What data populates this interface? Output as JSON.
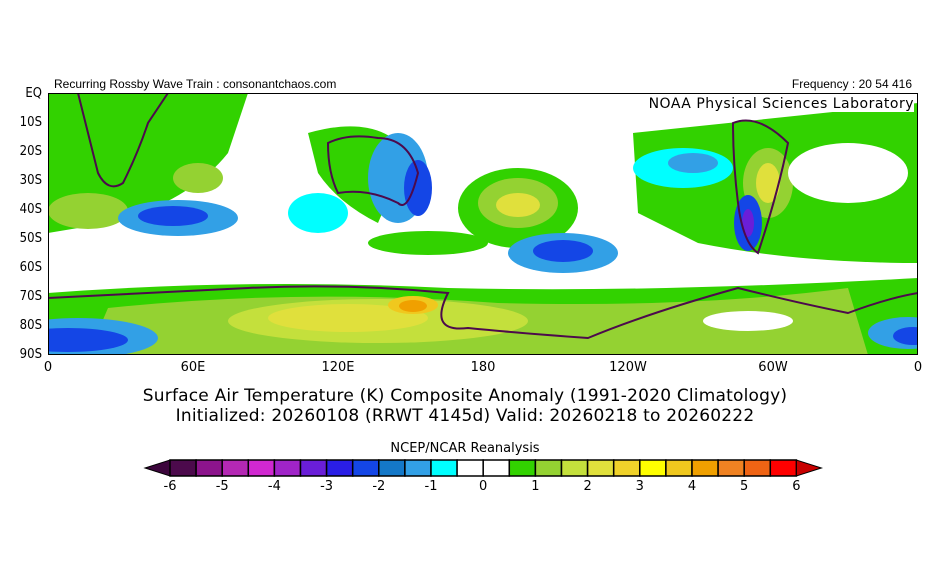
{
  "header": {
    "left": "Recurring Rossby Wave Train : consonantchaos.com",
    "right": "Frequency : 20 54 416",
    "lab": "NOAA Physical Sciences Laboratory"
  },
  "axes": {
    "lat_labels": [
      "EQ",
      "10S",
      "20S",
      "30S",
      "40S",
      "50S",
      "60S",
      "70S",
      "80S",
      "90S"
    ],
    "lon_labels": [
      "0",
      "60E",
      "120E",
      "180",
      "120W",
      "60W",
      "0"
    ]
  },
  "title": {
    "line1": "Surface Air Temperature (K) Composite Anomaly (1991-2020 Climatology)",
    "line2": "Initialized: 20260108 (RRWT 4145d) Valid: 20260218 to 20260222"
  },
  "colorbar": {
    "source": "NCEP/NCAR Reanalysis",
    "tick_labels": [
      "-6",
      "-5",
      "-4",
      "-3",
      "-2",
      "-1",
      "0",
      "1",
      "2",
      "3",
      "4",
      "5",
      "6"
    ],
    "colors": [
      "#4c0a4c",
      "#8c148c",
      "#b428b4",
      "#d028d0",
      "#a024c8",
      "#6a1ed8",
      "#2a1ee6",
      "#1446e6",
      "#1478c8",
      "#32a0e6",
      "#00ffff",
      "#ffffff",
      "#ffffff",
      "#32d200",
      "#94d232",
      "#c4e03c",
      "#e0e03c",
      "#f0d22a",
      "#ffff00",
      "#f0c81e",
      "#f0a000",
      "#f08222",
      "#f06414",
      "#ff0000"
    ],
    "under_color": "#3c063c",
    "over_color": "#c80000"
  }
}
